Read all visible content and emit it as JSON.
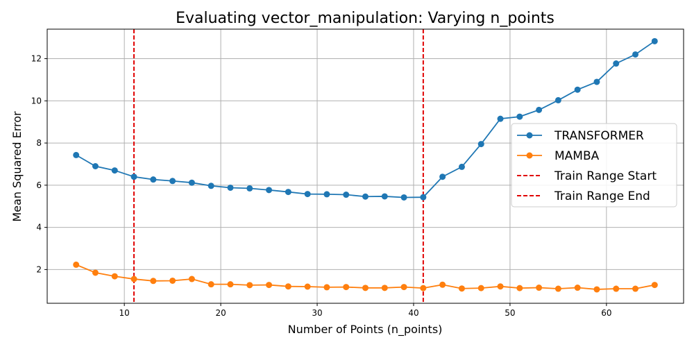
{
  "chart_data": {
    "type": "line",
    "title": "Evaluating vector_manipulation: Varying n_points",
    "xlabel": "Number of Points (n_points)",
    "ylabel": "Mean Squared Error",
    "xlim": [
      2.0,
      68.0
    ],
    "ylim": [
      0.4,
      13.4
    ],
    "xticks": [
      10,
      20,
      30,
      40,
      50,
      60
    ],
    "yticks": [
      2,
      4,
      6,
      8,
      10,
      12
    ],
    "grid": true,
    "legend_position": "center-right",
    "x": [
      5,
      7,
      9,
      11,
      13,
      15,
      17,
      19,
      21,
      23,
      25,
      27,
      29,
      31,
      33,
      35,
      37,
      39,
      41,
      43,
      45,
      47,
      49,
      51,
      53,
      55,
      57,
      59,
      61,
      63,
      65
    ],
    "series": [
      {
        "name": "TRANSFORMER",
        "color": "#1f77b4",
        "values": [
          7.43,
          6.9,
          6.7,
          6.4,
          6.27,
          6.2,
          6.12,
          5.97,
          5.88,
          5.85,
          5.77,
          5.68,
          5.58,
          5.57,
          5.55,
          5.46,
          5.47,
          5.42,
          5.43,
          6.4,
          6.87,
          7.95,
          9.15,
          9.25,
          9.57,
          10.03,
          10.53,
          10.9,
          11.77,
          12.2,
          12.83
        ]
      },
      {
        "name": "MAMBA",
        "color": "#ff7f0e",
        "values": [
          2.23,
          1.85,
          1.68,
          1.55,
          1.46,
          1.47,
          1.55,
          1.3,
          1.3,
          1.26,
          1.27,
          1.2,
          1.19,
          1.16,
          1.17,
          1.13,
          1.13,
          1.17,
          1.12,
          1.28,
          1.1,
          1.12,
          1.2,
          1.12,
          1.14,
          1.09,
          1.14,
          1.06,
          1.09,
          1.09,
          1.27
        ]
      }
    ],
    "vlines": [
      {
        "name": "Train Range Start",
        "x": 11,
        "color": "#e00000"
      },
      {
        "name": "Train Range End",
        "x": 41,
        "color": "#e00000"
      }
    ]
  }
}
